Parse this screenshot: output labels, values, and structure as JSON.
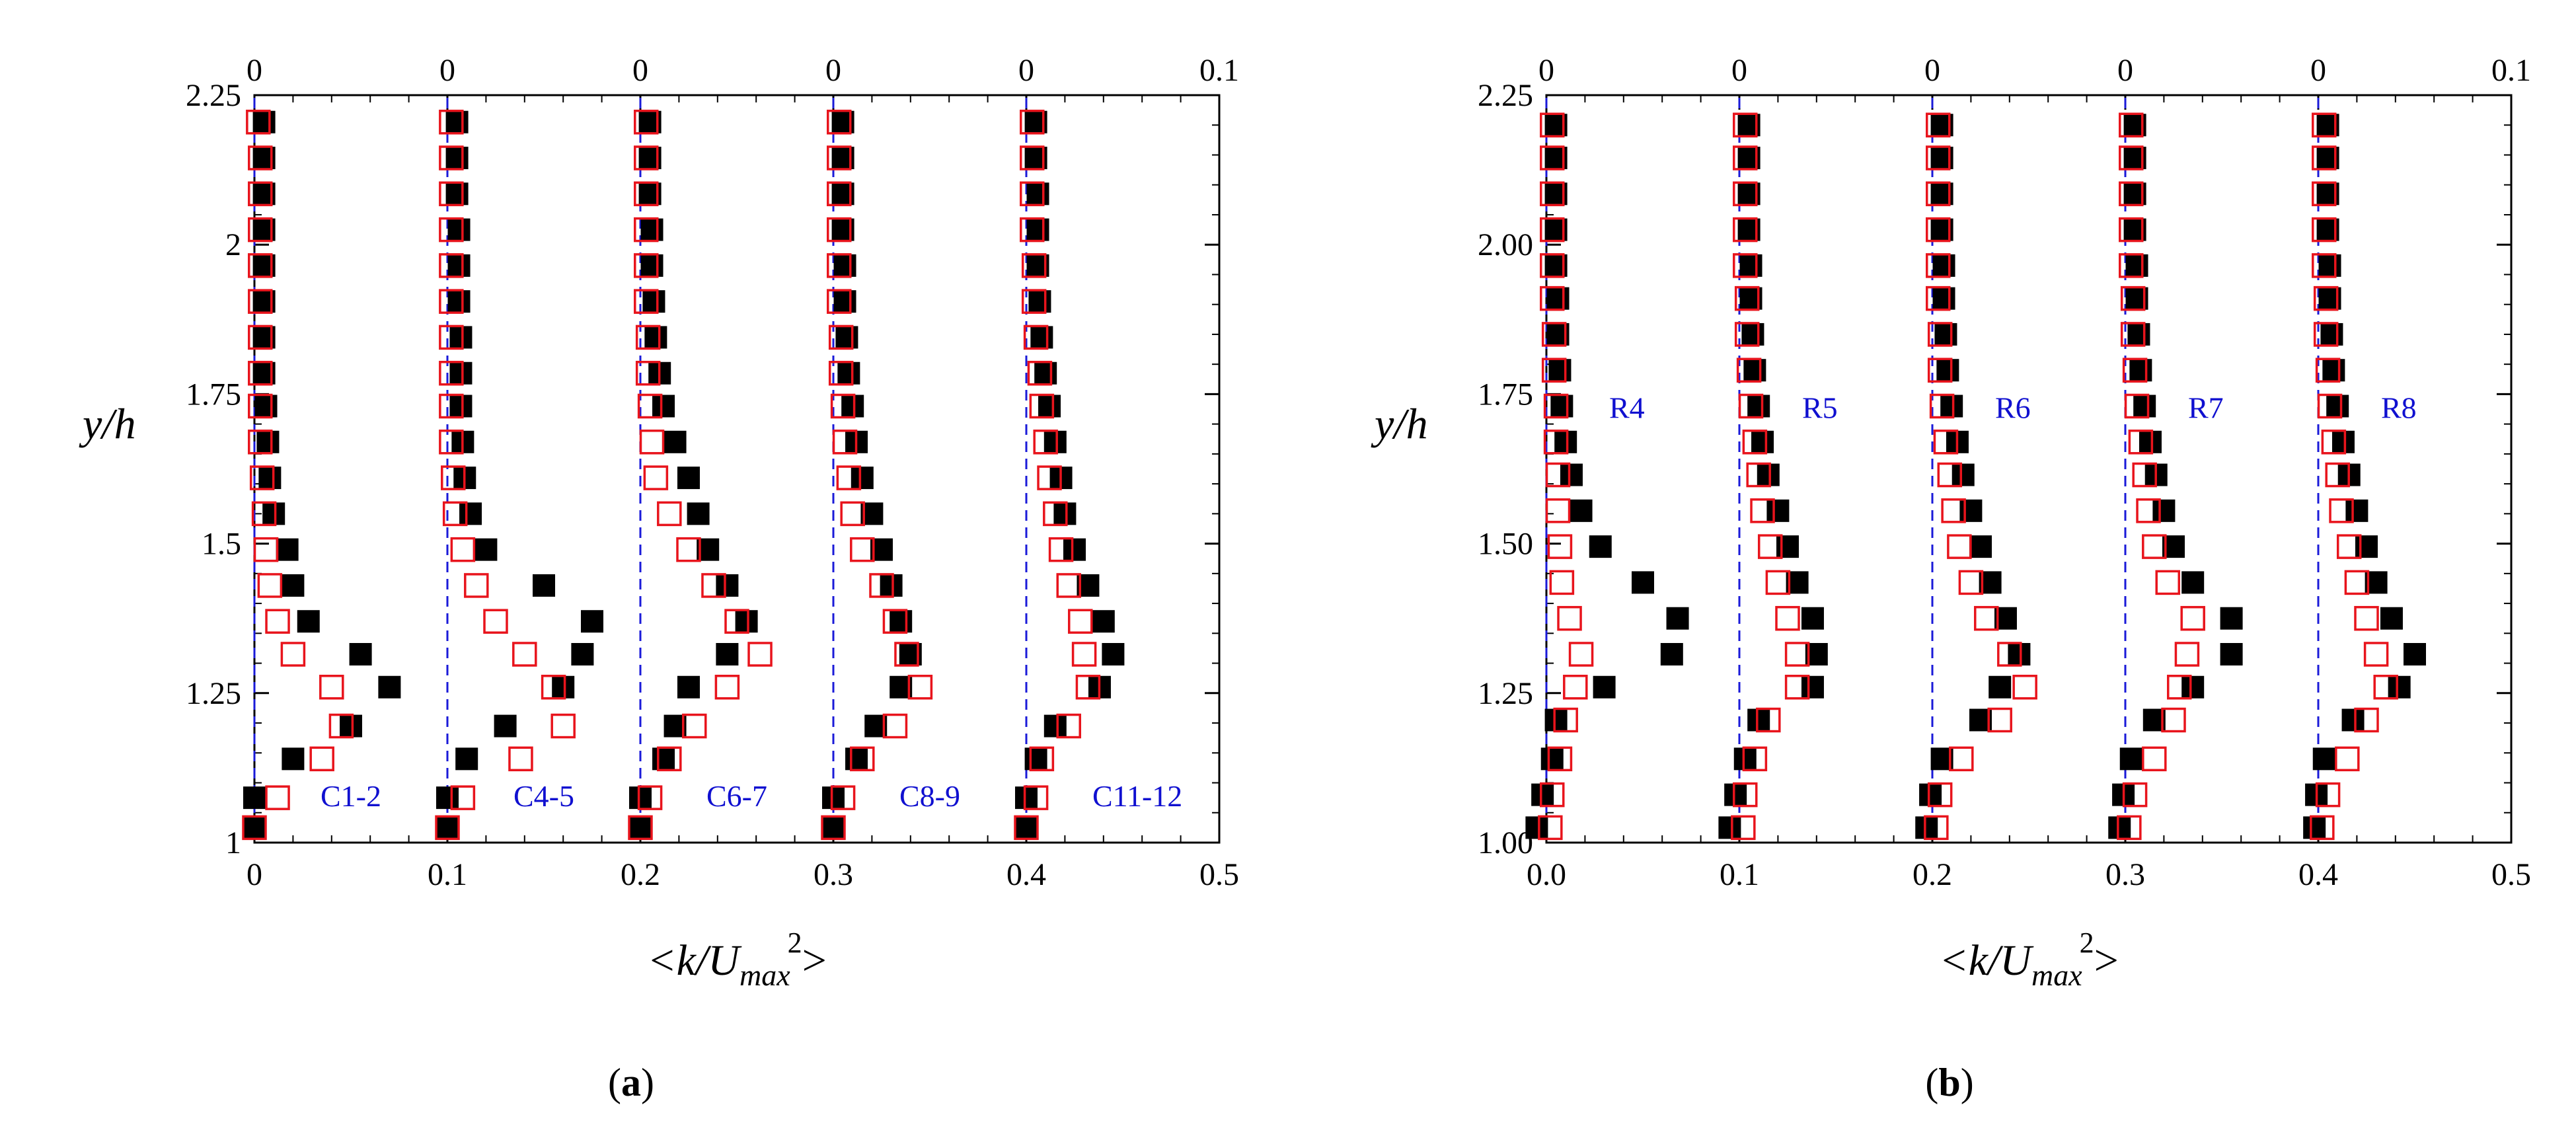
{
  "chart_data": [
    {
      "type": "scatter",
      "panel_caption": {
        "open": "(",
        "letter": "a",
        "close": ")"
      },
      "xlim": [
        0,
        0.5
      ],
      "ylim": [
        1,
        2.25
      ],
      "x_ticks": [
        "0",
        "0.1",
        "0.2",
        "0.3",
        "0.4",
        "0.5"
      ],
      "y_ticks": [
        "1",
        "1.25",
        "1.5",
        "1.75",
        "2",
        "2.25"
      ],
      "top_ticks": [
        "0",
        "0",
        "0",
        "0",
        "0",
        "0.1"
      ],
      "xlabel": {
        "pre": "<k/U",
        "sub": "max",
        "sup": "2",
        "post": ">"
      },
      "ylabel": "y/h",
      "y_levels": [
        1.025,
        1.075,
        1.14,
        1.195,
        1.26,
        1.315,
        1.37,
        1.43,
        1.49,
        1.55,
        1.61,
        1.67,
        1.73,
        1.785,
        1.845,
        1.905,
        1.965,
        2.025,
        2.085,
        2.145,
        2.205
      ],
      "profiles": [
        {
          "label": "C1-2",
          "offset": 0.0,
          "filled": [
            0.0,
            0.0,
            0.02,
            0.05,
            0.07,
            0.055,
            0.028,
            0.02,
            0.017,
            0.01,
            0.008,
            0.007,
            0.006,
            0.005,
            0.005,
            0.005,
            0.005,
            0.005,
            0.005,
            0.005,
            0.005
          ],
          "open": [
            0.0,
            0.012,
            0.035,
            0.045,
            0.04,
            0.02,
            0.012,
            0.008,
            0.006,
            0.005,
            0.004,
            0.003,
            0.003,
            0.003,
            0.003,
            0.003,
            0.003,
            0.003,
            0.003,
            0.003,
            0.002
          ]
        },
        {
          "label": "C4-5",
          "offset": 0.1,
          "filled": [
            0.0,
            0.0,
            0.01,
            0.03,
            0.06,
            0.07,
            0.075,
            0.05,
            0.02,
            0.012,
            0.009,
            0.008,
            0.007,
            0.007,
            0.007,
            0.006,
            0.006,
            0.006,
            0.005,
            0.005,
            0.005
          ],
          "open": [
            0.0,
            0.008,
            0.038,
            0.06,
            0.055,
            0.04,
            0.025,
            0.015,
            0.008,
            0.004,
            0.003,
            0.002,
            0.002,
            0.002,
            0.002,
            0.002,
            0.002,
            0.002,
            0.002,
            0.002,
            0.002
          ]
        },
        {
          "label": "C6-7",
          "offset": 0.2,
          "filled": [
            0.0,
            0.0,
            0.012,
            0.018,
            0.025,
            0.045,
            0.055,
            0.045,
            0.035,
            0.03,
            0.025,
            0.018,
            0.012,
            0.01,
            0.008,
            0.007,
            0.006,
            0.006,
            0.005,
            0.005,
            0.005
          ],
          "open": [
            0.0,
            0.005,
            0.015,
            0.028,
            0.045,
            0.062,
            0.05,
            0.038,
            0.025,
            0.015,
            0.008,
            0.006,
            0.005,
            0.004,
            0.004,
            0.003,
            0.003,
            0.003,
            0.003,
            0.003,
            0.003
          ]
        },
        {
          "label": "C8-9",
          "offset": 0.3,
          "filled": [
            0.0,
            0.0,
            0.012,
            0.022,
            0.035,
            0.04,
            0.035,
            0.03,
            0.025,
            0.02,
            0.015,
            0.012,
            0.01,
            0.008,
            0.007,
            0.006,
            0.006,
            0.005,
            0.005,
            0.005,
            0.005
          ],
          "open": [
            0.0,
            0.005,
            0.015,
            0.032,
            0.045,
            0.038,
            0.032,
            0.025,
            0.015,
            0.01,
            0.008,
            0.006,
            0.005,
            0.004,
            0.004,
            0.003,
            0.003,
            0.003,
            0.003,
            0.003,
            0.003
          ]
        },
        {
          "label": "C11-12",
          "offset": 0.4,
          "filled": [
            0.0,
            0.0,
            0.005,
            0.015,
            0.038,
            0.045,
            0.04,
            0.032,
            0.025,
            0.02,
            0.018,
            0.015,
            0.012,
            0.01,
            0.008,
            0.007,
            0.006,
            0.006,
            0.006,
            0.005,
            0.005
          ],
          "open": [
            0.0,
            0.005,
            0.008,
            0.022,
            0.032,
            0.03,
            0.028,
            0.022,
            0.018,
            0.015,
            0.012,
            0.01,
            0.008,
            0.007,
            0.005,
            0.004,
            0.004,
            0.003,
            0.003,
            0.003,
            0.003
          ]
        }
      ]
    },
    {
      "type": "scatter",
      "panel_caption": {
        "open": "(",
        "letter": "b",
        "close": ")"
      },
      "xlim": [
        0,
        0.5
      ],
      "ylim": [
        1,
        2.25
      ],
      "x_ticks": [
        "0.0",
        "0.1",
        "0.2",
        "0.3",
        "0.4",
        "0.5"
      ],
      "y_ticks": [
        "1.00",
        "1.25",
        "1.50",
        "1.75",
        "2.00",
        "2.25"
      ],
      "top_ticks": [
        "0",
        "0",
        "0",
        "0",
        "0",
        "0.1"
      ],
      "xlabel": {
        "pre": "<k/U",
        "sub": "max",
        "sup": "2",
        "post": ">"
      },
      "ylabel": "y/h",
      "y_levels": [
        1.025,
        1.08,
        1.14,
        1.205,
        1.26,
        1.315,
        1.375,
        1.435,
        1.495,
        1.555,
        1.615,
        1.67,
        1.73,
        1.79,
        1.85,
        1.91,
        1.965,
        2.025,
        2.085,
        2.145,
        2.2
      ],
      "profiles": [
        {
          "label": "R4",
          "offset": 0.0,
          "filled": [
            -0.005,
            -0.002,
            0.003,
            0.005,
            0.03,
            0.065,
            0.068,
            0.05,
            0.028,
            0.018,
            0.013,
            0.01,
            0.008,
            0.007,
            0.006,
            0.006,
            0.005,
            0.005,
            0.005,
            0.005,
            0.005
          ],
          "open": [
            0.002,
            0.003,
            0.007,
            0.01,
            0.015,
            0.018,
            0.012,
            0.008,
            0.007,
            0.006,
            0.006,
            0.005,
            0.005,
            0.004,
            0.004,
            0.003,
            0.003,
            0.003,
            0.003,
            0.003,
            0.003
          ]
        },
        {
          "label": "R5",
          "offset": 0.1,
          "filled": [
            -0.005,
            -0.002,
            0.003,
            0.01,
            0.038,
            0.04,
            0.038,
            0.03,
            0.025,
            0.02,
            0.015,
            0.012,
            0.01,
            0.008,
            0.007,
            0.006,
            0.006,
            0.005,
            0.005,
            0.005,
            0.005
          ],
          "open": [
            0.002,
            0.003,
            0.008,
            0.015,
            0.03,
            0.03,
            0.025,
            0.02,
            0.016,
            0.012,
            0.01,
            0.008,
            0.006,
            0.005,
            0.004,
            0.004,
            0.003,
            0.003,
            0.003,
            0.003,
            0.003
          ]
        },
        {
          "label": "R6",
          "offset": 0.2,
          "filled": [
            -0.003,
            -0.001,
            0.005,
            0.025,
            0.035,
            0.045,
            0.038,
            0.03,
            0.025,
            0.02,
            0.016,
            0.013,
            0.01,
            0.008,
            0.007,
            0.006,
            0.006,
            0.005,
            0.005,
            0.005,
            0.005
          ],
          "open": [
            0.002,
            0.004,
            0.015,
            0.035,
            0.048,
            0.04,
            0.028,
            0.02,
            0.014,
            0.011,
            0.009,
            0.007,
            0.005,
            0.004,
            0.004,
            0.003,
            0.003,
            0.003,
            0.003,
            0.003,
            0.003
          ]
        },
        {
          "label": "R7",
          "offset": 0.3,
          "filled": [
            -0.003,
            -0.001,
            0.003,
            0.015,
            0.035,
            0.055,
            0.055,
            0.035,
            0.025,
            0.02,
            0.016,
            0.013,
            0.01,
            0.008,
            0.007,
            0.006,
            0.006,
            0.005,
            0.005,
            0.005,
            0.005
          ],
          "open": [
            0.002,
            0.005,
            0.015,
            0.025,
            0.028,
            0.032,
            0.035,
            0.022,
            0.015,
            0.012,
            0.01,
            0.008,
            0.006,
            0.005,
            0.004,
            0.004,
            0.003,
            0.003,
            0.003,
            0.003,
            0.003
          ]
        },
        {
          "label": "R8",
          "offset": 0.4,
          "filled": [
            -0.002,
            -0.001,
            0.003,
            0.018,
            0.042,
            0.05,
            0.038,
            0.03,
            0.025,
            0.02,
            0.016,
            0.013,
            0.01,
            0.008,
            0.007,
            0.006,
            0.006,
            0.005,
            0.005,
            0.005,
            0.005
          ],
          "open": [
            0.002,
            0.005,
            0.015,
            0.025,
            0.035,
            0.03,
            0.025,
            0.02,
            0.016,
            0.012,
            0.01,
            0.008,
            0.006,
            0.005,
            0.004,
            0.004,
            0.003,
            0.003,
            0.003,
            0.003,
            0.003
          ]
        }
      ]
    }
  ],
  "colors": {
    "filled_marker": "#000000",
    "open_marker": "#e8141c",
    "reference_line": "#1a1ad8",
    "profile_label": "#1010d0"
  }
}
